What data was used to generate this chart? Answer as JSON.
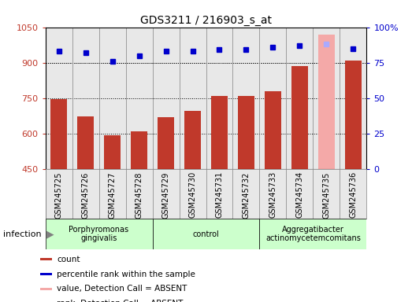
{
  "title": "GDS3211 / 216903_s_at",
  "samples": [
    "GSM245725",
    "GSM245726",
    "GSM245727",
    "GSM245728",
    "GSM245729",
    "GSM245730",
    "GSM245731",
    "GSM245732",
    "GSM245733",
    "GSM245734",
    "GSM245735",
    "GSM245736"
  ],
  "counts": [
    747,
    672,
    592,
    610,
    670,
    695,
    760,
    758,
    780,
    885,
    1020,
    910
  ],
  "percentile_ranks": [
    83,
    82,
    76,
    80,
    83,
    83,
    84,
    84,
    86,
    87,
    88,
    85
  ],
  "detection_absent": [
    false,
    false,
    false,
    false,
    false,
    false,
    false,
    false,
    false,
    false,
    true,
    false
  ],
  "ylim_left": [
    450,
    1050
  ],
  "ylim_right": [
    0,
    100
  ],
  "yticks_left": [
    450,
    600,
    750,
    900,
    1050
  ],
  "yticks_right": [
    0,
    25,
    50,
    75,
    100
  ],
  "bar_color": "#c0392b",
  "absent_bar_color": "#f4a9a8",
  "dot_color": "#0000cc",
  "absent_dot_color": "#aaaaff",
  "group_labels": [
    "Porphyromonas\ngingivalis",
    "control",
    "Aggregatibacter\nactinomycetemcomitans"
  ],
  "group_ranges": [
    [
      0,
      3
    ],
    [
      4,
      7
    ],
    [
      8,
      11
    ]
  ],
  "infection_label": "infection",
  "legend_labels": [
    "count",
    "percentile rank within the sample",
    "value, Detection Call = ABSENT",
    "rank, Detection Call = ABSENT"
  ],
  "legend_colors": [
    "#c0392b",
    "#0000cc",
    "#f4a9a8",
    "#aaaaff"
  ],
  "tick_color_left": "#c0392b",
  "tick_color_right": "#0000cc",
  "bg_color": "#e8e8e8",
  "grid_color": "#000000"
}
